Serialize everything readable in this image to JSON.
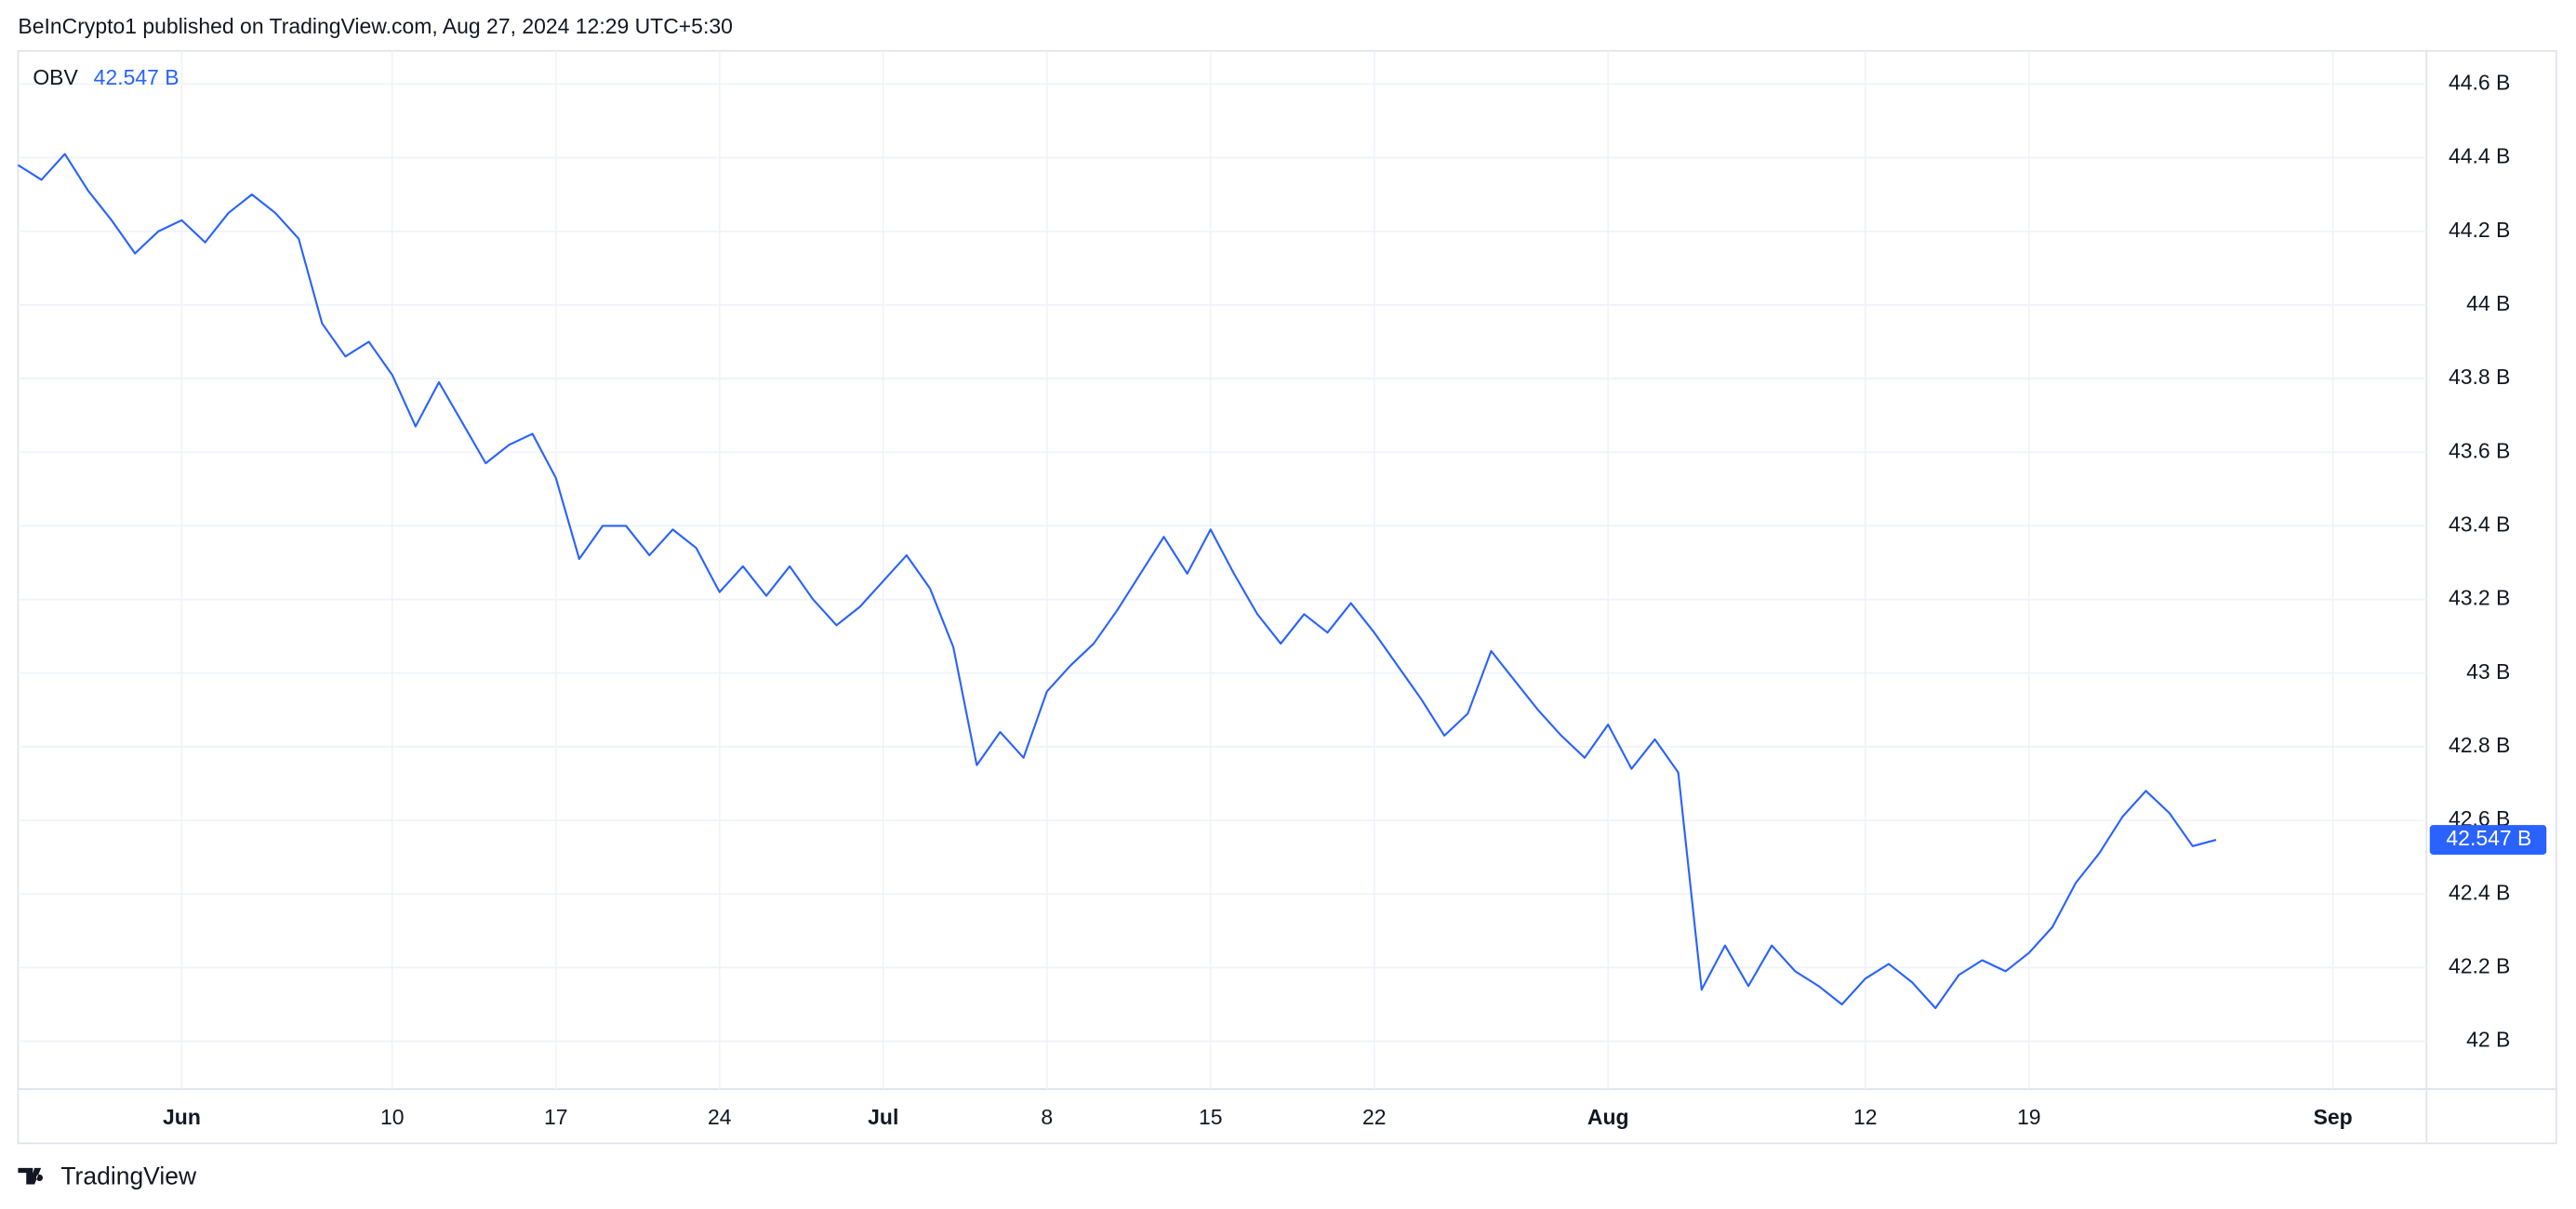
{
  "chart_data": {
    "type": "line",
    "caption": "BeInCrypto1 published on TradingView.com, Aug 27, 2024 12:29 UTC+5:30",
    "source": "TradingView",
    "x": [
      "May 25",
      "May 26",
      "May 27",
      "May 28",
      "May 29",
      "May 30",
      "May 31",
      "Jun 1",
      "Jun 2",
      "Jun 3",
      "Jun 4",
      "Jun 5",
      "Jun 6",
      "Jun 7",
      "Jun 8",
      "Jun 9",
      "Jun 10",
      "Jun 11",
      "Jun 12",
      "Jun 13",
      "Jun 14",
      "Jun 15",
      "Jun 16",
      "Jun 17",
      "Jun 18",
      "Jun 19",
      "Jun 20",
      "Jun 21",
      "Jun 22",
      "Jun 23",
      "Jun 24",
      "Jun 25",
      "Jun 26",
      "Jun 27",
      "Jun 28",
      "Jun 29",
      "Jun 30",
      "Jul 1",
      "Jul 2",
      "Jul 3",
      "Jul 4",
      "Jul 5",
      "Jul 6",
      "Jul 7",
      "Jul 8",
      "Jul 9",
      "Jul 10",
      "Jul 11",
      "Jul 12",
      "Jul 13",
      "Jul 14",
      "Jul 15",
      "Jul 16",
      "Jul 17",
      "Jul 18",
      "Jul 19",
      "Jul 20",
      "Jul 21",
      "Jul 22",
      "Jul 23",
      "Jul 24",
      "Jul 25",
      "Jul 26",
      "Jul 27",
      "Jul 28",
      "Jul 29",
      "Jul 30",
      "Jul 31",
      "Aug 1",
      "Aug 2",
      "Aug 3",
      "Aug 4",
      "Aug 5",
      "Aug 6",
      "Aug 7",
      "Aug 8",
      "Aug 9",
      "Aug 10",
      "Aug 11",
      "Aug 12",
      "Aug 13",
      "Aug 14",
      "Aug 15",
      "Aug 16",
      "Aug 17",
      "Aug 18",
      "Aug 19",
      "Aug 20",
      "Aug 21",
      "Aug 22",
      "Aug 23",
      "Aug 24",
      "Aug 25",
      "Aug 26",
      "Aug 27"
    ],
    "series": [
      {
        "name": "OBV",
        "color": "#2962ff",
        "values": [
          44.38,
          44.34,
          44.41,
          44.31,
          44.23,
          44.14,
          44.2,
          44.23,
          44.17,
          44.25,
          44.3,
          44.25,
          44.18,
          43.95,
          43.86,
          43.9,
          43.81,
          43.67,
          43.79,
          43.68,
          43.57,
          43.62,
          43.65,
          43.53,
          43.31,
          43.4,
          43.4,
          43.32,
          43.39,
          43.34,
          43.22,
          43.29,
          43.21,
          43.29,
          43.2,
          43.13,
          43.18,
          43.25,
          43.32,
          43.23,
          43.07,
          42.75,
          42.84,
          42.77,
          42.95,
          43.02,
          43.08,
          43.17,
          43.27,
          43.37,
          43.27,
          43.39,
          43.27,
          43.16,
          43.08,
          43.16,
          43.11,
          43.19,
          43.11,
          43.02,
          42.93,
          42.83,
          42.89,
          43.06,
          42.98,
          42.9,
          42.83,
          42.77,
          42.86,
          42.74,
          42.82,
          42.73,
          42.14,
          42.26,
          42.15,
          42.26,
          42.19,
          42.15,
          42.1,
          42.17,
          42.21,
          42.16,
          42.09,
          42.18,
          42.22,
          42.19,
          42.24,
          42.31,
          42.43,
          42.51,
          42.61,
          42.68,
          42.62,
          42.53,
          42.547
        ],
        "value_labels": [
          null,
          null,
          null,
          null,
          null,
          null,
          null,
          null,
          null,
          null,
          null,
          null,
          null,
          null,
          null,
          null,
          null,
          null,
          null,
          null,
          null,
          null,
          null,
          null,
          null,
          null,
          null,
          null,
          null,
          null,
          null,
          null,
          null,
          null,
          null,
          null,
          null,
          null,
          null,
          null,
          null,
          null,
          null,
          null,
          null,
          null,
          null,
          null,
          null,
          null,
          null,
          null,
          null,
          null,
          null,
          null,
          null,
          null,
          null,
          null,
          null,
          null,
          null,
          null,
          null,
          null,
          null,
          null,
          null,
          null,
          null,
          null,
          null,
          null,
          null,
          null,
          null,
          null,
          null,
          null,
          null,
          null,
          null,
          null,
          null,
          null,
          null,
          null,
          null,
          null,
          null,
          null,
          null,
          null,
          "42.547 B"
        ]
      }
    ],
    "xlim": [
      "May 25",
      "Sep 5"
    ],
    "xticks": [
      {
        "value": "Jun 1",
        "label": "Jun"
      },
      {
        "value": "Jun 10",
        "label": "10"
      },
      {
        "value": "Jun 17",
        "label": "17"
      },
      {
        "value": "Jun 24",
        "label": "24"
      },
      {
        "value": "Jul 1",
        "label": "Jul"
      },
      {
        "value": "Jul 8",
        "label": "8"
      },
      {
        "value": "Jul 15",
        "label": "15"
      },
      {
        "value": "Jul 22",
        "label": "22"
      },
      {
        "value": "Aug 1",
        "label": "Aug"
      },
      {
        "value": "Aug 12",
        "label": "12"
      },
      {
        "value": "Aug 19",
        "label": "19"
      },
      {
        "value": "Sep 1",
        "label": "Sep"
      }
    ],
    "ylim": [
      41.87,
      44.69
    ],
    "yticks": [
      {
        "value": 42,
        "label": "42 B"
      },
      {
        "value": 42.2,
        "label": "42.2 B"
      },
      {
        "value": 42.4,
        "label": "42.4 B"
      },
      {
        "value": 42.6,
        "label": "42.6 B"
      },
      {
        "value": 42.8,
        "label": "42.8 B"
      },
      {
        "value": 43,
        "label": "43 B"
      },
      {
        "value": 43.2,
        "label": "43.2 B"
      },
      {
        "value": 43.4,
        "label": "43.4 B"
      },
      {
        "value": 43.6,
        "label": "43.6 B"
      },
      {
        "value": 43.8,
        "label": "43.8 B"
      },
      {
        "value": 44,
        "label": "44 B"
      },
      {
        "value": 44.2,
        "label": "44.2 B"
      },
      {
        "value": 44.4,
        "label": "44.4 B"
      },
      {
        "value": 44.6,
        "label": "44.6 B"
      }
    ],
    "grid": true
  }
}
